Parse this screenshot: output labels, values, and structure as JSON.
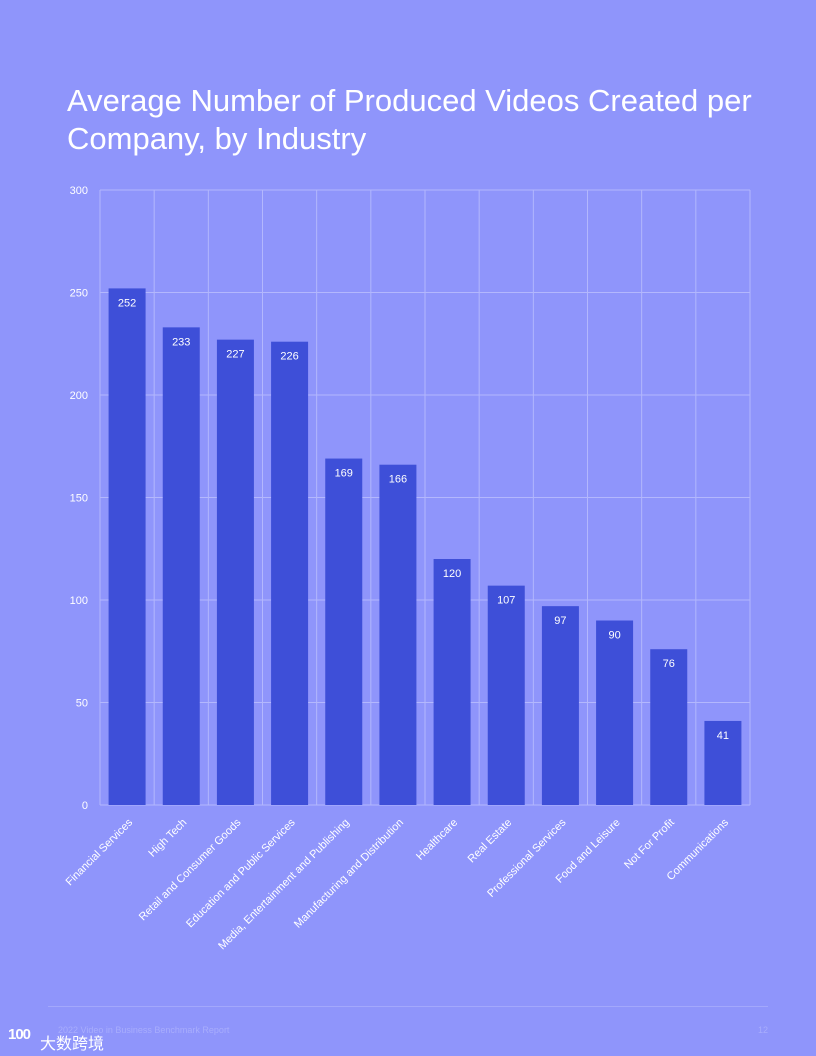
{
  "chart_data": {
    "type": "bar",
    "title": "Average Number of Produced Videos Created per Company, by Industry",
    "xlabel": "",
    "ylabel": "",
    "ylim": [
      0,
      300
    ],
    "yticks": [
      0,
      50,
      100,
      150,
      200,
      250,
      300
    ],
    "grid": true,
    "categories": [
      "Financial Services",
      "High Tech",
      "Retail and Consumer Goods",
      "Education and Public Services",
      "Media, Entertainment and Publishing",
      "Manufacturing and Distribution",
      "Healthcare",
      "Real Estate",
      "Professional Services",
      "Food and Leisure",
      "Not For Profit",
      "Communications"
    ],
    "values": [
      252,
      233,
      227,
      226,
      169,
      166,
      120,
      107,
      97,
      90,
      76,
      41
    ],
    "colors": {
      "bar": "#3e4fd8",
      "background": "#8f95fb",
      "grid": "#b3b7fd",
      "label": "#ffffff"
    }
  },
  "footer": {
    "report_name": "2022 Video in Business Benchmark Report",
    "page_number": "12"
  },
  "watermark": {
    "logo": "100",
    "text": "大数跨境"
  }
}
